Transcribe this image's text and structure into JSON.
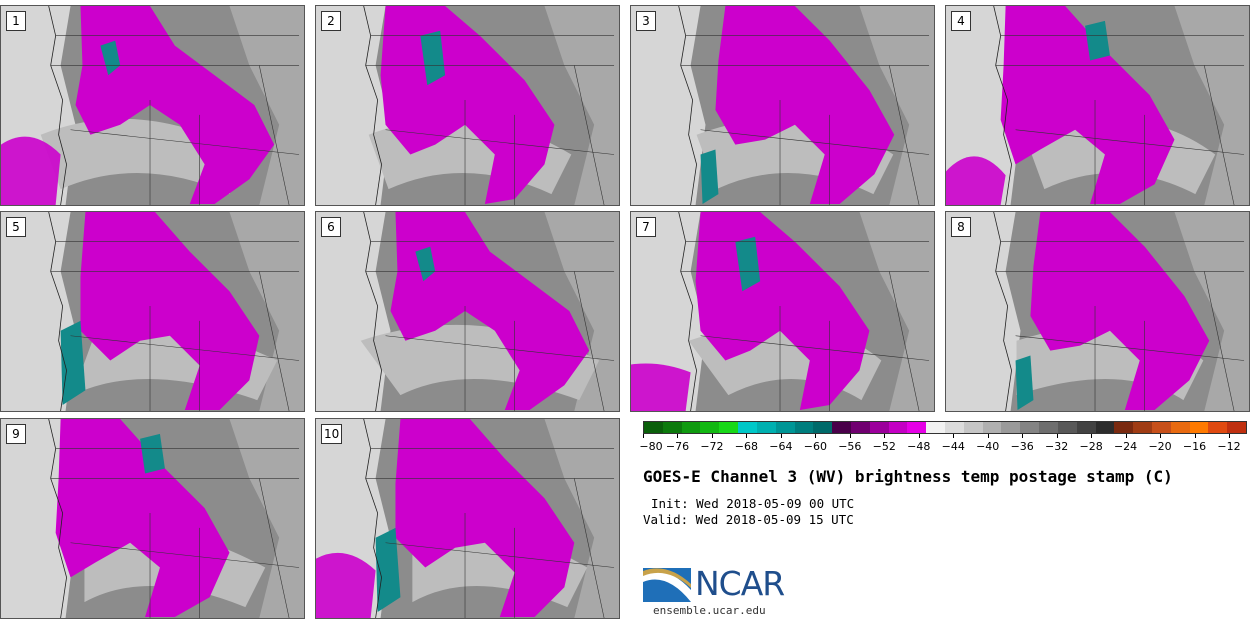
{
  "panels": [
    {
      "label": "1"
    },
    {
      "label": "2"
    },
    {
      "label": "3"
    },
    {
      "label": "4"
    },
    {
      "label": "5"
    },
    {
      "label": "6"
    },
    {
      "label": "7"
    },
    {
      "label": "8"
    },
    {
      "label": "9"
    },
    {
      "label": "10"
    }
  ],
  "colorbar": {
    "colors": [
      "#0a5f0a",
      "#0c7a0c",
      "#0f9a0f",
      "#12b812",
      "#18d818",
      "#00c8c8",
      "#00b0b0",
      "#009696",
      "#007e7e",
      "#006a6a",
      "#4a004a",
      "#700070",
      "#9c009c",
      "#c400c4",
      "#e600e6",
      "#f2f2f2",
      "#dcdcdc",
      "#c6c6c6",
      "#b0b0b0",
      "#9a9a9a",
      "#848484",
      "#6e6e6e",
      "#585858",
      "#424242",
      "#2c2c2c",
      "#7a2a10",
      "#a03c14",
      "#c8501a",
      "#e86a10",
      "#ff7a00",
      "#e04a10",
      "#c03010"
    ],
    "tick_labels": [
      "−80",
      "−76",
      "−72",
      "−68",
      "−64",
      "−60",
      "−56",
      "−52",
      "−48",
      "−44",
      "−40",
      "−36",
      "−32",
      "−28",
      "−24",
      "−20",
      "−16",
      "−12"
    ]
  },
  "title": "GOES-E Channel 3 (WV) brightness temp postage stamp (C)",
  "init": "Init: Wed 2018-05-09 00 UTC",
  "valid": "Valid: Wed 2018-05-09 15 UTC",
  "logo": {
    "text": "NCAR",
    "site": "ensemble.ucar.edu"
  },
  "colors": {
    "moist": "#cc00cc",
    "cold_cloud": "#138a8a",
    "land_dry": "#8c8c8c",
    "ocean": "#d6d6d6"
  }
}
